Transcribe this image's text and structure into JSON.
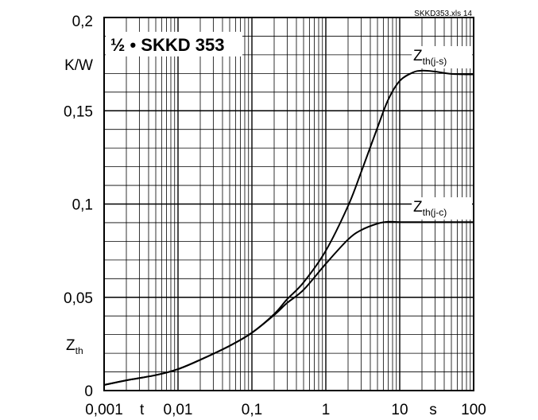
{
  "chart_data": {
    "type": "line",
    "title": "½ • SKKD 353",
    "source_label": "SKKD353.xls 14",
    "x_scale": "log",
    "xlim": [
      0.001,
      100
    ],
    "ylim": [
      0,
      0.2
    ],
    "x_ticks": [
      "0,001",
      "0,01",
      "0,1",
      "1",
      "10",
      "100"
    ],
    "x_tick_values": [
      0.001,
      0.01,
      0.1,
      1,
      10,
      100
    ],
    "y_ticks": [
      "0",
      "0,05",
      "0,1",
      "0,15",
      "0,2"
    ],
    "y_tick_values": [
      0,
      0.05,
      0.1,
      0.15,
      0.2
    ],
    "xlabel": "t",
    "xunit": "s",
    "ylabel_main": "Z",
    "ylabel_sub": "th",
    "yunit": "K/W",
    "grid": true,
    "series": [
      {
        "name_main": "Z",
        "name_sub": "th(j-s)",
        "x": [
          0.001,
          0.002,
          0.005,
          0.01,
          0.02,
          0.05,
          0.1,
          0.2,
          0.3,
          0.5,
          1,
          2,
          3,
          5,
          7,
          10,
          15,
          20,
          30,
          50,
          100
        ],
        "y": [
          0.003,
          0.0055,
          0.0083,
          0.0115,
          0.0165,
          0.024,
          0.031,
          0.041,
          0.049,
          0.058,
          0.075,
          0.099,
          0.117,
          0.141,
          0.156,
          0.166,
          0.1705,
          0.1715,
          0.171,
          0.1698,
          0.1695
        ]
      },
      {
        "name_main": "Z",
        "name_sub": "th(j-c)",
        "x": [
          0.001,
          0.002,
          0.005,
          0.01,
          0.02,
          0.05,
          0.1,
          0.2,
          0.3,
          0.5,
          1,
          2,
          3,
          5,
          7,
          10,
          20,
          50,
          100
        ],
        "y": [
          0.003,
          0.0055,
          0.0083,
          0.0115,
          0.0165,
          0.024,
          0.031,
          0.0405,
          0.047,
          0.054,
          0.068,
          0.081,
          0.086,
          0.0895,
          0.0905,
          0.0903,
          0.0903,
          0.0903,
          0.0903
        ]
      }
    ]
  }
}
